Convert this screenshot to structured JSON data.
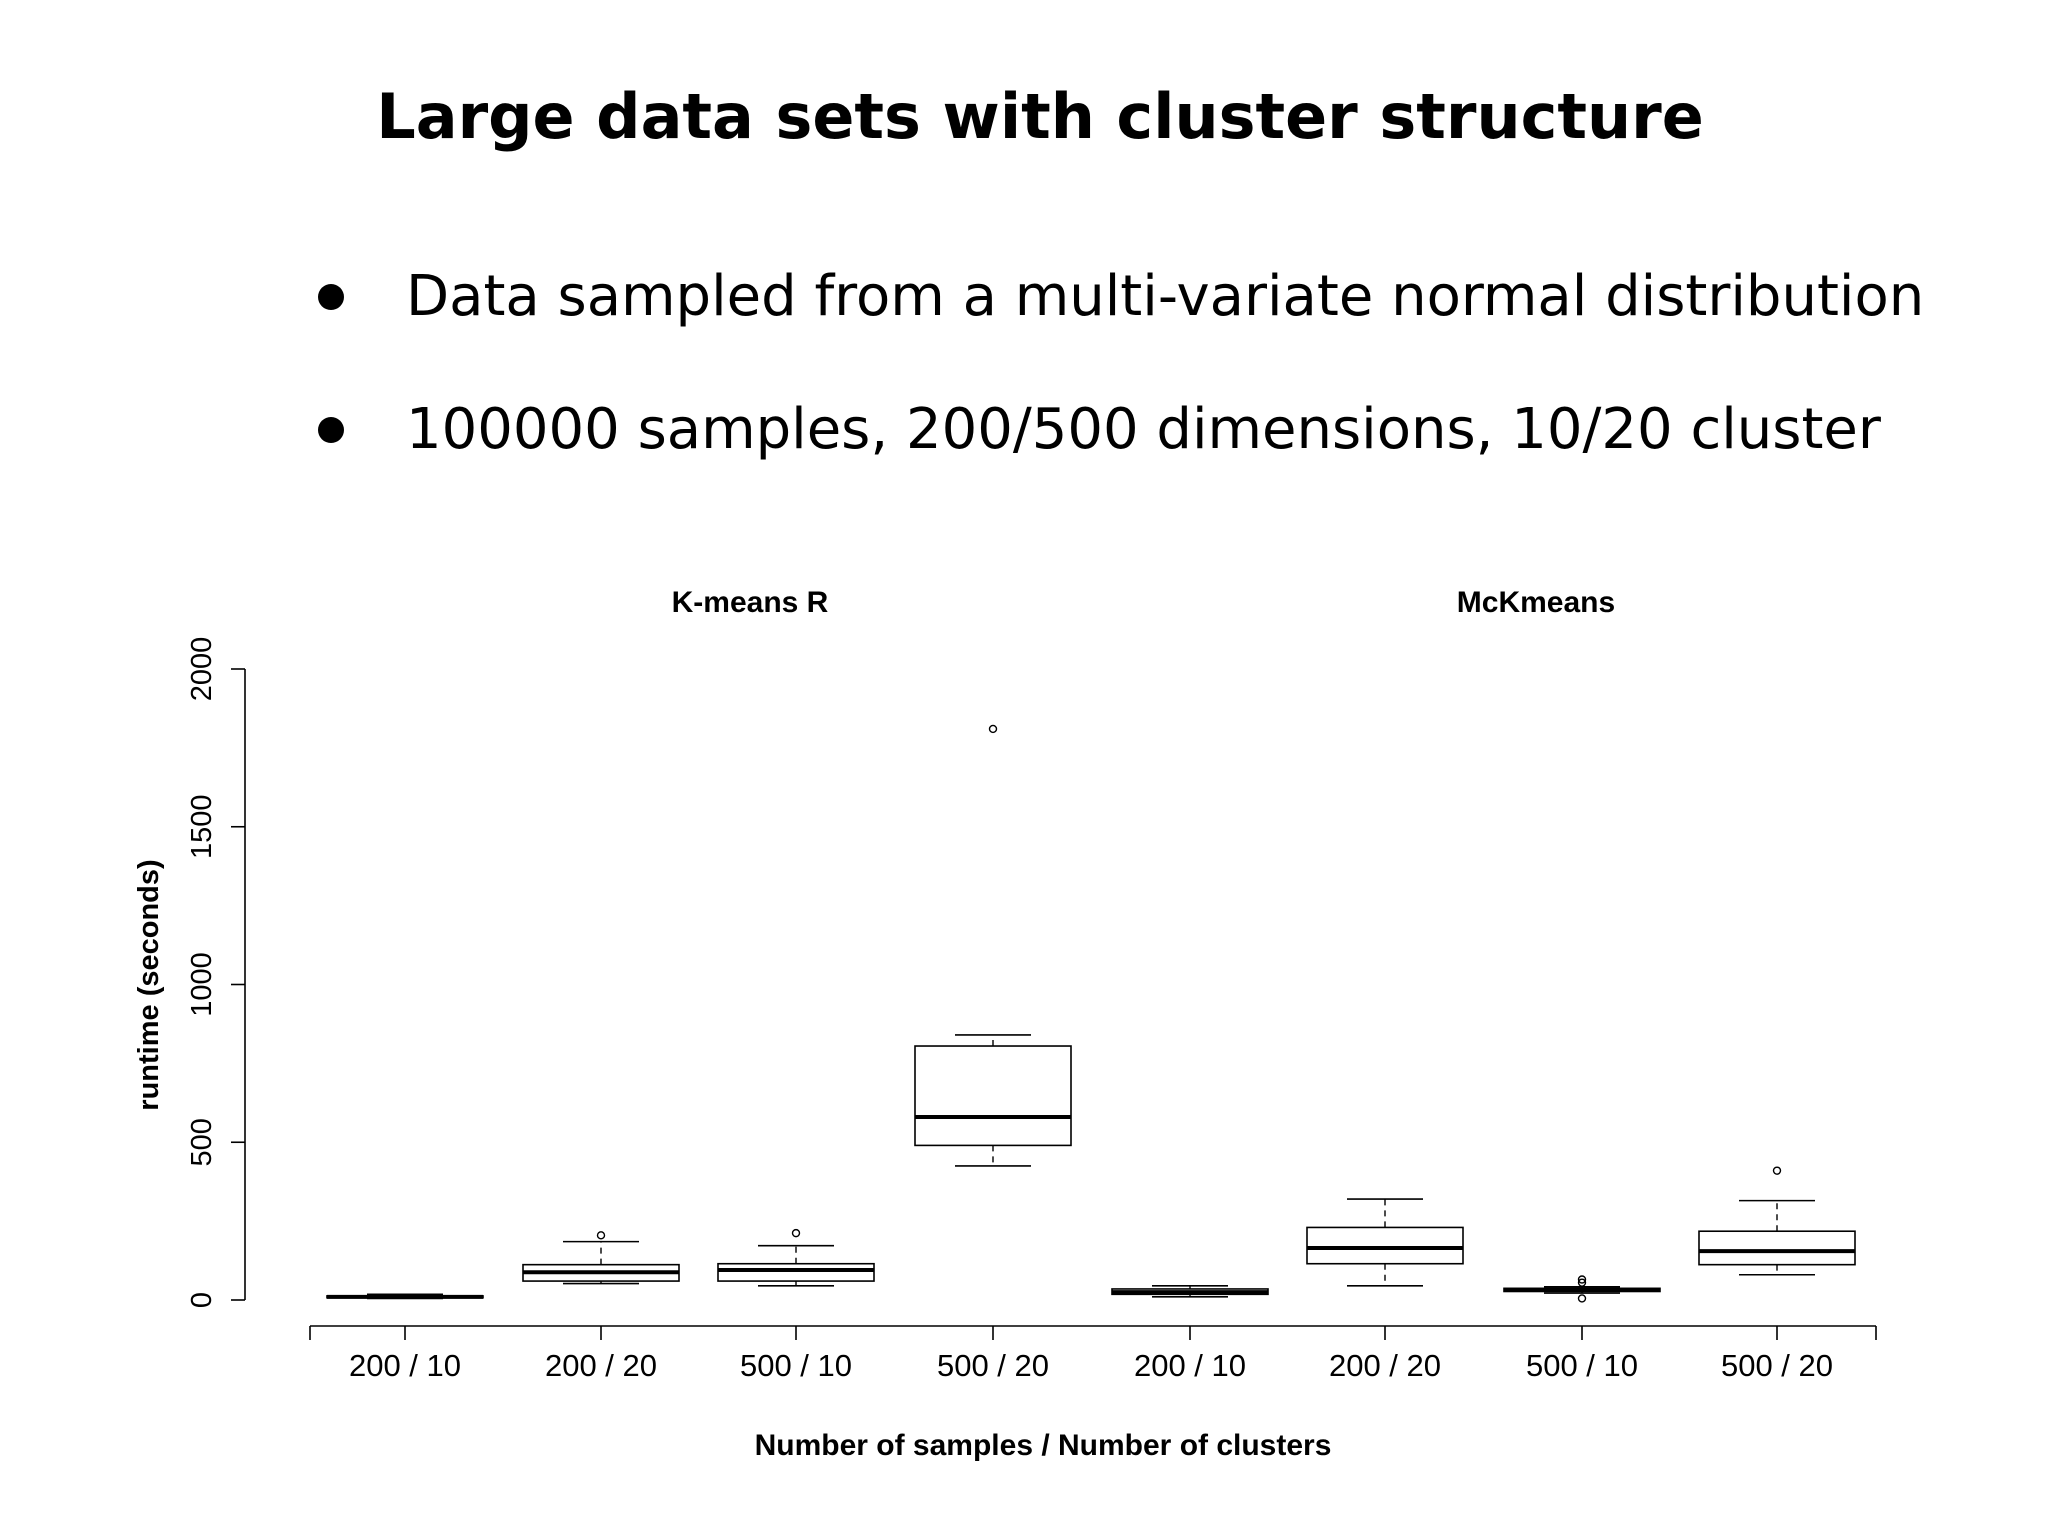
{
  "slide": {
    "title": "Large data sets with cluster structure",
    "bullets": [
      "Data sampled from a multi-variate normal distribution",
      "100000 samples, 200/500 dimensions, 10/20 cluster"
    ]
  },
  "chart_data": {
    "type": "boxplot",
    "panel_titles": [
      "K-means R",
      "McKmeans"
    ],
    "xlabel": "Number of samples / Number of clusters",
    "ylabel": "runtime (seconds)",
    "ylim": [
      0,
      2000
    ],
    "yticks": [
      0,
      500,
      1000,
      1500,
      2000
    ],
    "grid": false,
    "categories": [
      "200 / 10",
      "200 / 20",
      "500 / 10",
      "500 / 20",
      "200 / 10",
      "200 / 20",
      "500 / 10",
      "500 / 20"
    ],
    "groups": [
      {
        "name": "K-means R",
        "boxes": [
          {
            "label": "200 / 10",
            "whisker_low": 5,
            "q1": 7,
            "median": 10,
            "q3": 13,
            "whisker_high": 18,
            "outliers": []
          },
          {
            "label": "200 / 20",
            "whisker_low": 52,
            "q1": 60,
            "median": 88,
            "q3": 112,
            "whisker_high": 185,
            "outliers": [
              205
            ]
          },
          {
            "label": "500 / 10",
            "whisker_low": 45,
            "q1": 60,
            "median": 95,
            "q3": 115,
            "whisker_high": 172,
            "outliers": [
              212
            ]
          },
          {
            "label": "500 / 20",
            "whisker_low": 425,
            "q1": 490,
            "median": 580,
            "q3": 805,
            "whisker_high": 840,
            "outliers": [
              1810
            ]
          }
        ]
      },
      {
        "name": "McKmeans",
        "boxes": [
          {
            "label": "200 / 10",
            "whisker_low": 10,
            "q1": 18,
            "median": 25,
            "q3": 35,
            "whisker_high": 45,
            "outliers": []
          },
          {
            "label": "200 / 20",
            "whisker_low": 45,
            "q1": 115,
            "median": 165,
            "q3": 230,
            "whisker_high": 320,
            "outliers": []
          },
          {
            "label": "500 / 10",
            "whisker_low": 22,
            "q1": 27,
            "median": 32,
            "q3": 37,
            "whisker_high": 42,
            "outliers": [
              5,
              55,
              65
            ]
          },
          {
            "label": "500 / 20",
            "whisker_low": 80,
            "q1": 112,
            "median": 155,
            "q3": 218,
            "whisker_high": 315,
            "outliers": [
              410
            ]
          }
        ]
      }
    ]
  }
}
